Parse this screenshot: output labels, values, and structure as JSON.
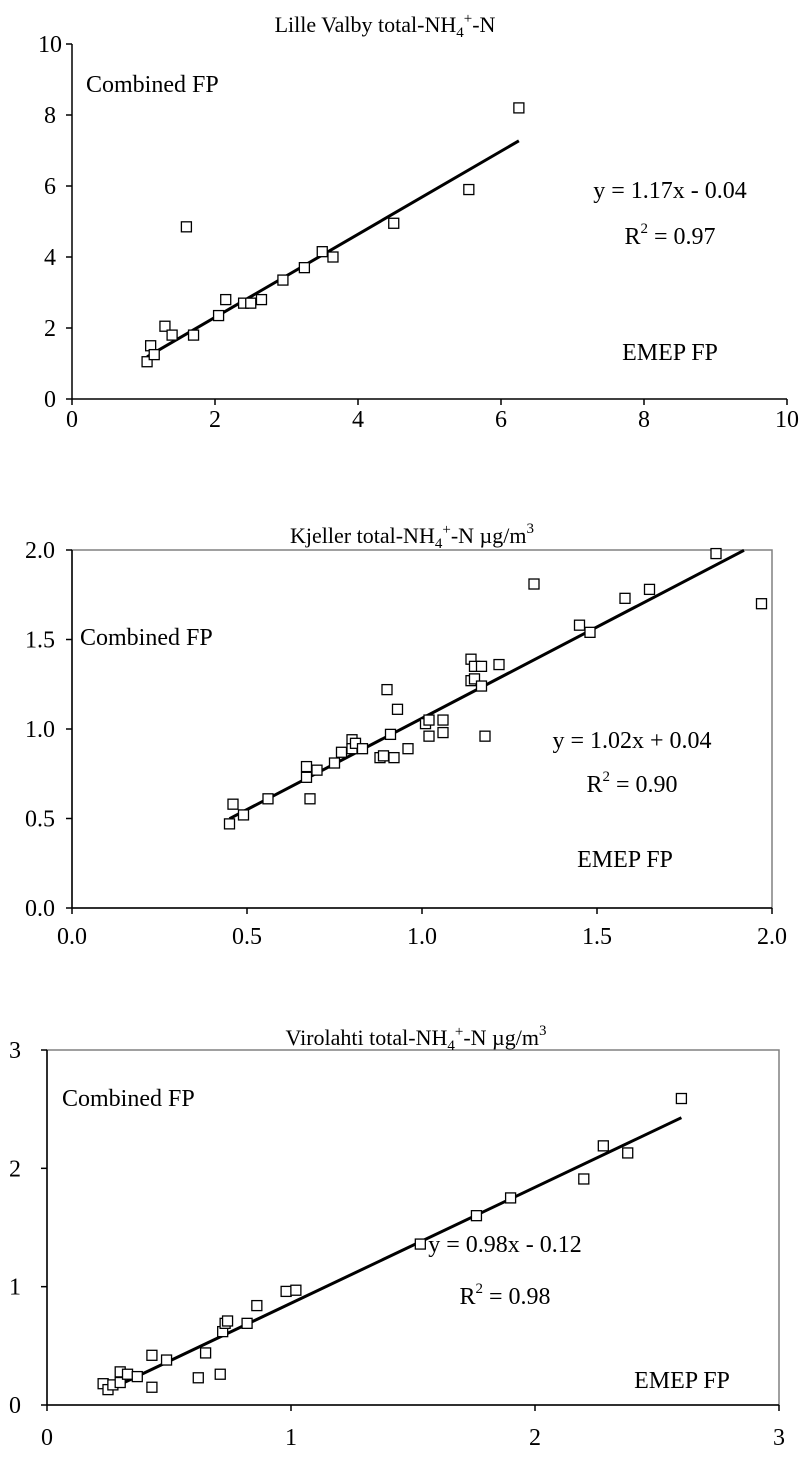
{
  "chart_data": [
    {
      "type": "scatter",
      "title": "Lille Valby total-NH4+-N",
      "title_parts": {
        "pre": "Lille Valby total-NH",
        "sub": "4",
        "sup": "+",
        "post": "-N"
      },
      "xlim": [
        0,
        10
      ],
      "ylim": [
        0,
        10
      ],
      "xticks": [
        "0",
        "2",
        "4",
        "6",
        "8",
        "10"
      ],
      "yticks": [
        "0",
        "2",
        "4",
        "6",
        "8",
        "10"
      ],
      "label_ylabel": "Combined FP",
      "label_xlabel": "EMEP FP",
      "equation": "y = 1.17x - 0.04",
      "r2_text": {
        "pre": "R",
        "sup": "2",
        "post": " = 0.97"
      },
      "trendline": {
        "slope": 1.17,
        "intercept": -0.04,
        "x_range": [
          1.05,
          6.25
        ]
      },
      "points": [
        [
          1.05,
          1.05
        ],
        [
          1.1,
          1.5
        ],
        [
          1.15,
          1.25
        ],
        [
          1.3,
          2.05
        ],
        [
          1.4,
          1.8
        ],
        [
          1.6,
          4.85
        ],
        [
          1.7,
          1.8
        ],
        [
          2.05,
          2.35
        ],
        [
          2.15,
          2.8
        ],
        [
          2.4,
          2.7
        ],
        [
          2.5,
          2.7
        ],
        [
          2.65,
          2.8
        ],
        [
          2.95,
          3.35
        ],
        [
          3.25,
          3.7
        ],
        [
          3.5,
          4.15
        ],
        [
          3.65,
          4.0
        ],
        [
          4.5,
          4.95
        ],
        [
          5.55,
          5.9
        ],
        [
          6.25,
          8.2
        ]
      ],
      "grid": false,
      "legend": "none"
    },
    {
      "type": "scatter",
      "title": "Kjeller total-NH4+-N µg/m3",
      "title_parts": {
        "pre": "Kjeller total-NH",
        "sub": "4",
        "sup": "+",
        "post": "-N µg/m",
        "sup2": "3"
      },
      "xlim": [
        0,
        2
      ],
      "ylim": [
        0,
        2
      ],
      "xticks": [
        "0.0",
        "0.5",
        "1.0",
        "1.5",
        "2.0"
      ],
      "yticks": [
        "0.0",
        "0.5",
        "1.0",
        "1.5",
        "2.0"
      ],
      "label_ylabel": "Combined FP",
      "label_xlabel": "EMEP FP",
      "equation": "y = 1.02x + 0.04",
      "r2_text": {
        "pre": "R",
        "sup": "2",
        "post": " = 0.90"
      },
      "trendline": {
        "slope": 1.02,
        "intercept": 0.04,
        "x_range": [
          0.45,
          1.92
        ]
      },
      "points": [
        [
          0.45,
          0.47
        ],
        [
          0.46,
          0.58
        ],
        [
          0.49,
          0.52
        ],
        [
          0.56,
          0.61
        ],
        [
          0.67,
          0.79
        ],
        [
          0.67,
          0.73
        ],
        [
          0.68,
          0.61
        ],
        [
          0.7,
          0.77
        ],
        [
          0.75,
          0.81
        ],
        [
          0.77,
          0.87
        ],
        [
          0.8,
          0.94
        ],
        [
          0.8,
          0.89
        ],
        [
          0.81,
          0.92
        ],
        [
          0.83,
          0.89
        ],
        [
          0.88,
          0.84
        ],
        [
          0.89,
          0.85
        ],
        [
          0.9,
          1.22
        ],
        [
          0.91,
          0.97
        ],
        [
          0.92,
          0.84
        ],
        [
          0.93,
          1.11
        ],
        [
          0.96,
          0.89
        ],
        [
          1.01,
          1.03
        ],
        [
          1.02,
          0.96
        ],
        [
          1.02,
          1.05
        ],
        [
          1.06,
          1.05
        ],
        [
          1.06,
          0.98
        ],
        [
          1.14,
          1.39
        ],
        [
          1.14,
          1.27
        ],
        [
          1.15,
          1.35
        ],
        [
          1.15,
          1.28
        ],
        [
          1.17,
          1.35
        ],
        [
          1.17,
          1.24
        ],
        [
          1.18,
          0.96
        ],
        [
          1.22,
          1.36
        ],
        [
          1.32,
          1.81
        ],
        [
          1.45,
          1.58
        ],
        [
          1.48,
          1.54
        ],
        [
          1.58,
          1.73
        ],
        [
          1.65,
          1.78
        ],
        [
          1.84,
          1.98
        ],
        [
          1.97,
          1.7
        ]
      ],
      "grid": false,
      "legend": "none"
    },
    {
      "type": "scatter",
      "title": "Virolahti total-NH4+-N µg/m3",
      "title_parts": {
        "pre": "Virolahti  total-NH",
        "sub": "4",
        "sup": "+",
        "post": "-N µg/m",
        "sup2": "3"
      },
      "xlim": [
        0,
        3
      ],
      "ylim": [
        0,
        3
      ],
      "xticks": [
        "0",
        "1",
        "2",
        "3"
      ],
      "yticks": [
        "0",
        "1",
        "2",
        "3"
      ],
      "label_ylabel": "Combined FP",
      "label_xlabel": "EMEP FP",
      "equation": "y = 0.98x - 0.12",
      "r2_text": {
        "pre": "R",
        "sup": "2",
        "post": " = 0.98"
      },
      "trendline": {
        "slope": 0.98,
        "intercept": -0.12,
        "x_range": [
          0.25,
          2.6
        ]
      },
      "points": [
        [
          0.23,
          0.18
        ],
        [
          0.25,
          0.13
        ],
        [
          0.27,
          0.17
        ],
        [
          0.3,
          0.19
        ],
        [
          0.3,
          0.28
        ],
        [
          0.33,
          0.26
        ],
        [
          0.37,
          0.24
        ],
        [
          0.43,
          0.42
        ],
        [
          0.43,
          0.15
        ],
        [
          0.49,
          0.38
        ],
        [
          0.62,
          0.23
        ],
        [
          0.65,
          0.44
        ],
        [
          0.71,
          0.26
        ],
        [
          0.72,
          0.62
        ],
        [
          0.73,
          0.69
        ],
        [
          0.74,
          0.71
        ],
        [
          0.82,
          0.69
        ],
        [
          0.86,
          0.84
        ],
        [
          0.98,
          0.96
        ],
        [
          1.02,
          0.97
        ],
        [
          1.53,
          1.36
        ],
        [
          1.76,
          1.6
        ],
        [
          1.9,
          1.75
        ],
        [
          2.2,
          1.91
        ],
        [
          2.28,
          2.19
        ],
        [
          2.38,
          2.13
        ],
        [
          2.6,
          2.59
        ]
      ],
      "grid": false,
      "legend": "none"
    }
  ]
}
